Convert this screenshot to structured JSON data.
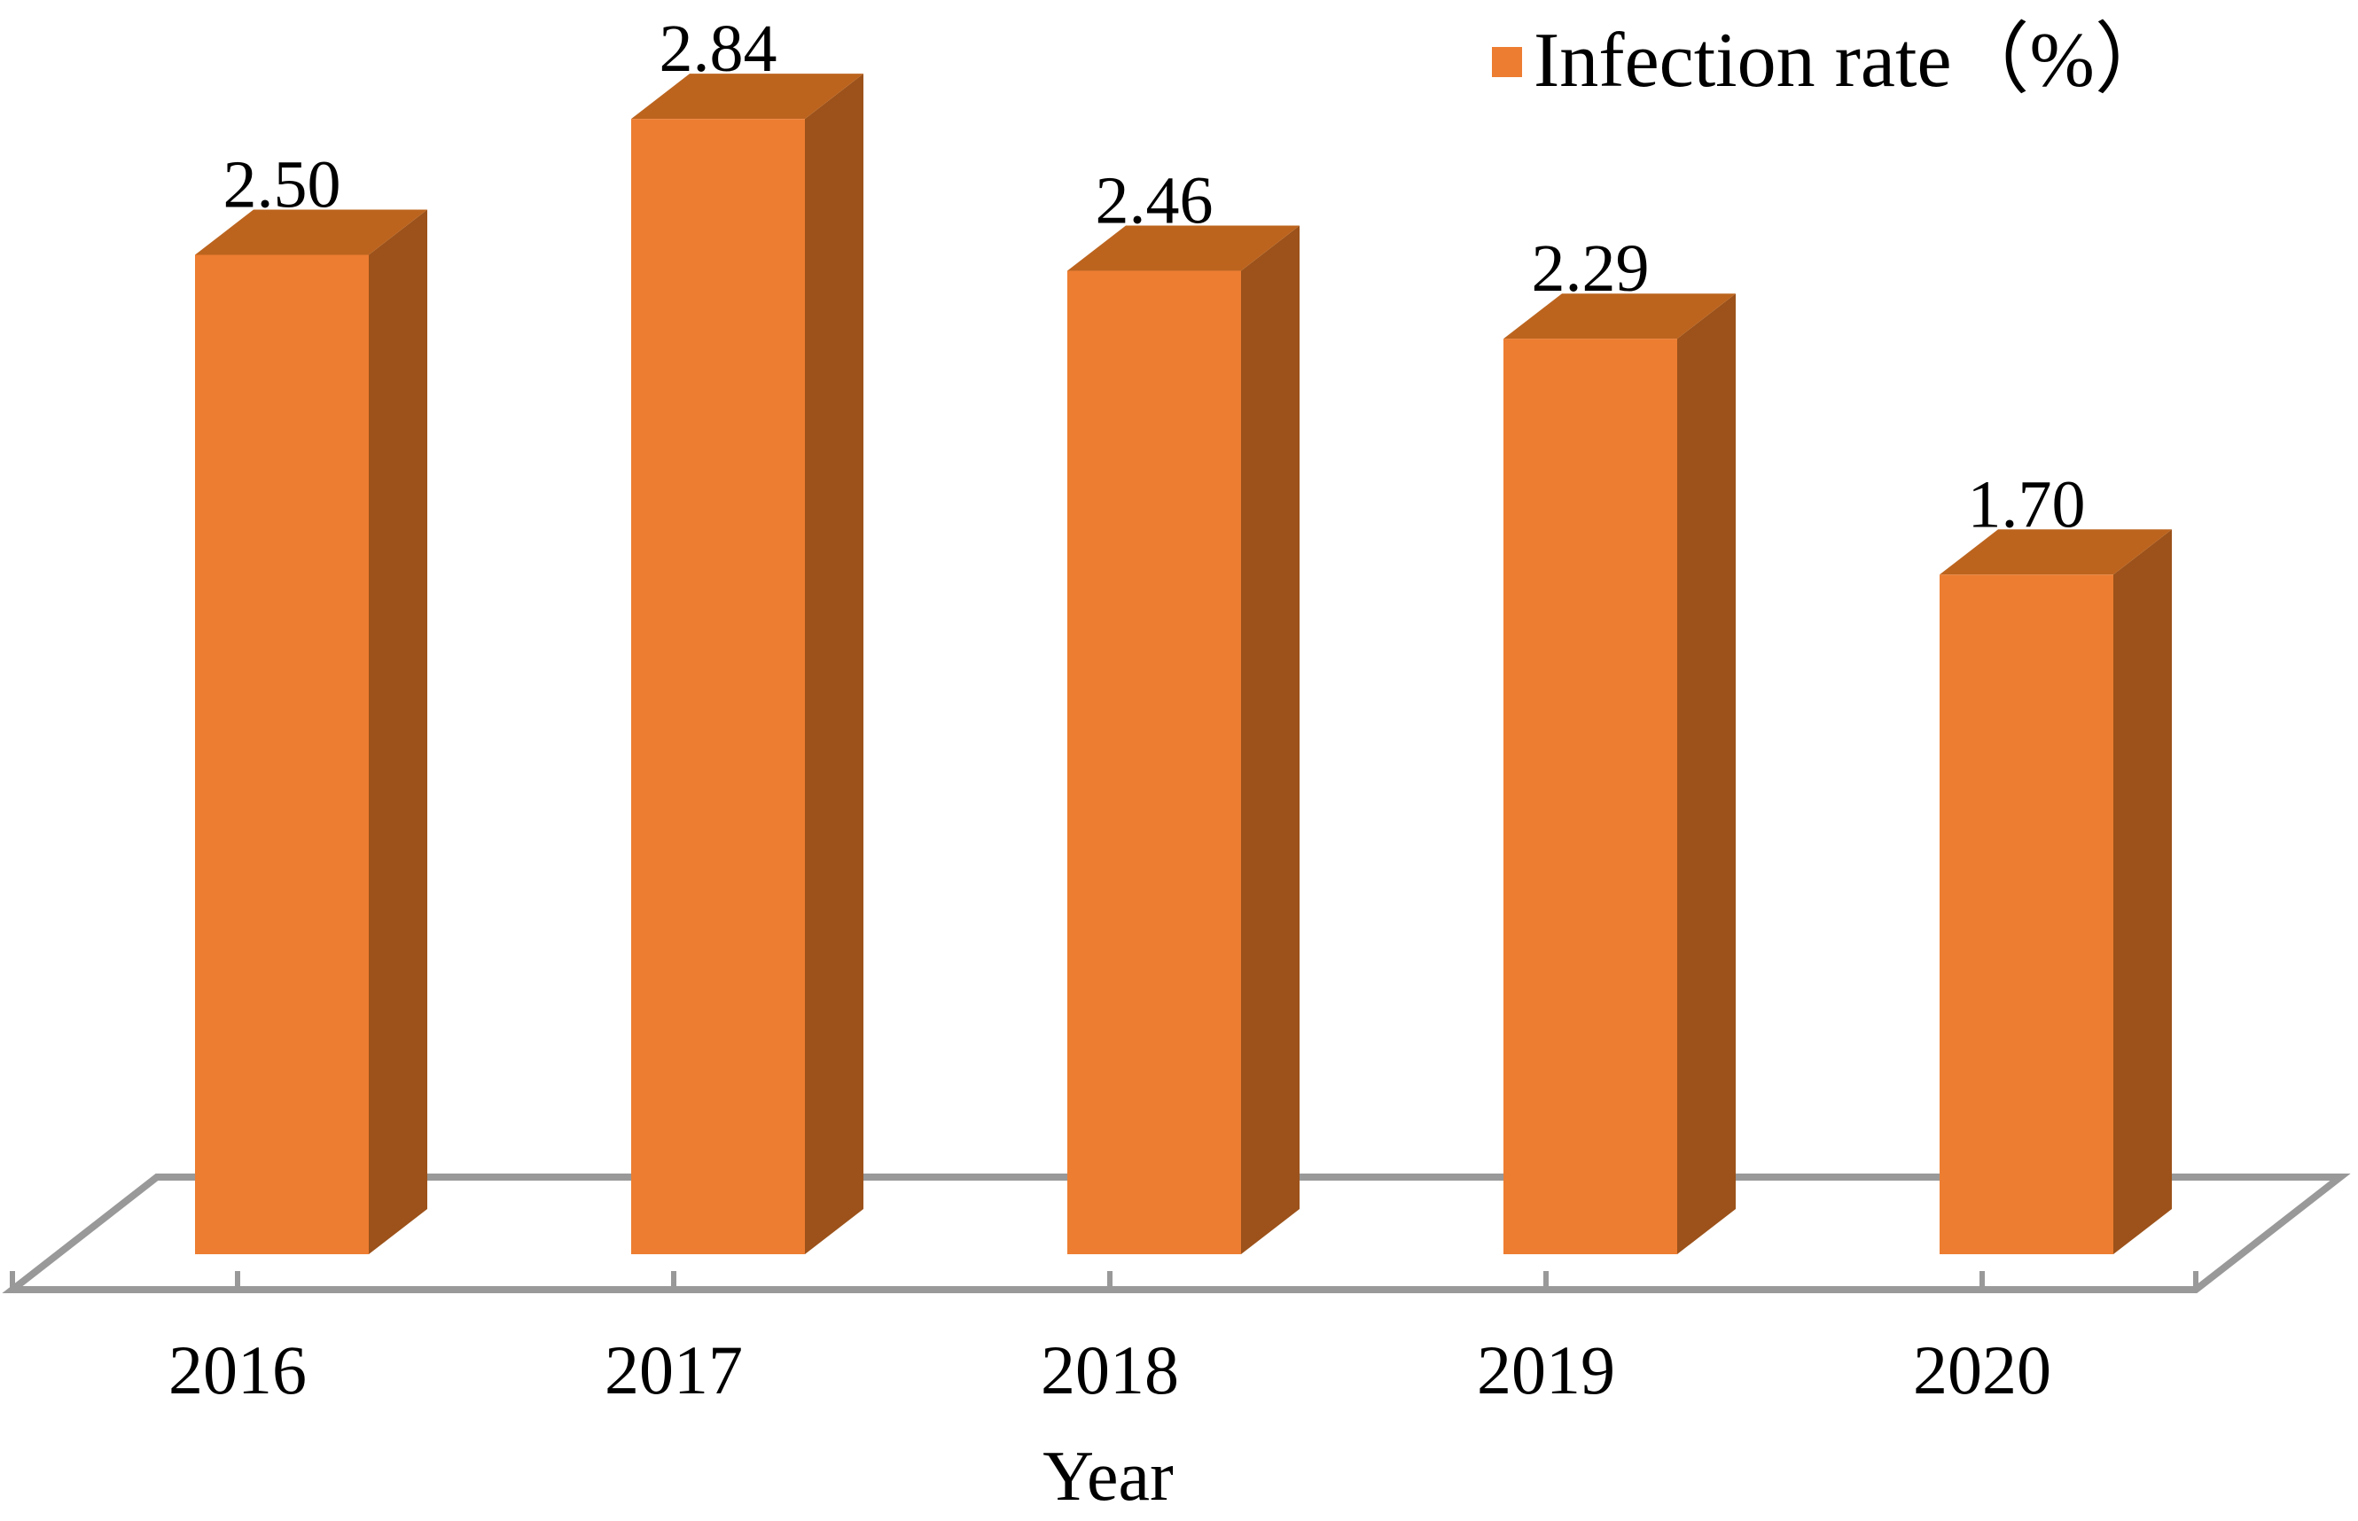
{
  "chart_data": {
    "type": "bar",
    "projection": "3d-column",
    "title": "",
    "categories": [
      "2016",
      "2017",
      "2018",
      "2019",
      "2020"
    ],
    "series": [
      {
        "name": "Infection rate（%）",
        "color": "#ED7D31",
        "values": [
          2.5,
          2.84,
          2.46,
          2.29,
          1.7
        ]
      }
    ],
    "data_labels": [
      "2.50",
      "2.84",
      "2.46",
      "2.29",
      "1.70"
    ],
    "xlabel": "Year",
    "ylabel": "",
    "ylim": [
      0,
      3
    ],
    "grid": false,
    "legend_position": "top-right",
    "colors": {
      "bar_front": "#ED7D31",
      "bar_top": "#BC641E",
      "bar_side": "#9C521A",
      "axis_line": "#999999",
      "text": "#000000"
    }
  }
}
